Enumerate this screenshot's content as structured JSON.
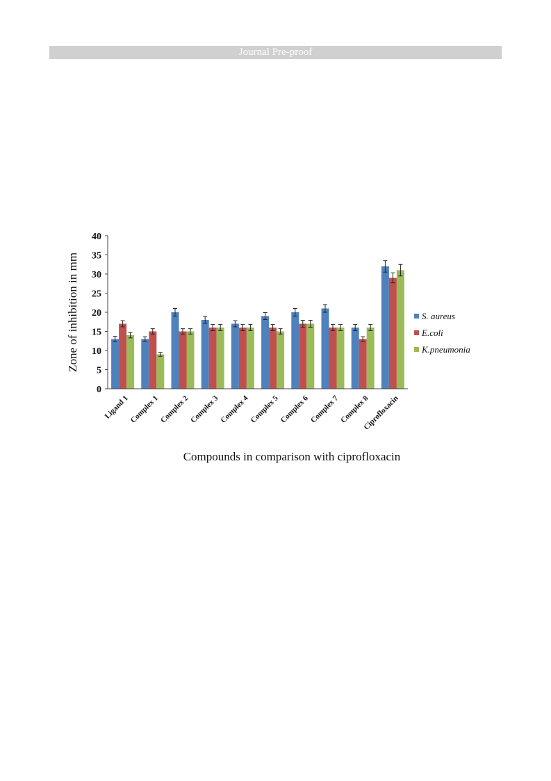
{
  "banner": {
    "text": "Journal Pre-proof"
  },
  "chart_data": {
    "type": "bar",
    "title": "",
    "xlabel": "Compounds  in comparison with ciprofloxacin",
    "ylabel": "Zone of inhibition in mm",
    "ylim": [
      0,
      40
    ],
    "yticks": [
      0,
      5,
      10,
      15,
      20,
      25,
      30,
      35,
      40
    ],
    "grid": false,
    "legend_position": "right",
    "error_bars": true,
    "categories": [
      "Ligand 1",
      "Complex 1",
      "Complex 2",
      "Complex 3",
      "Complex 4",
      "Complex 5",
      "Complex 6",
      "Complex 7",
      "Complex 8",
      "Ciprofloxacin"
    ],
    "series": [
      {
        "name": "S. aureus",
        "color": "#4f81bd",
        "values": [
          13,
          13,
          20,
          18,
          17,
          19,
          20,
          21,
          16,
          32
        ],
        "errors": [
          0.7,
          0.6,
          1.0,
          0.9,
          0.8,
          0.9,
          1.0,
          1.0,
          0.8,
          1.5
        ]
      },
      {
        "name": "E.coli",
        "color": "#c0504d",
        "values": [
          17,
          15,
          15,
          16,
          16,
          16,
          17,
          16,
          13,
          29
        ],
        "errors": [
          0.8,
          0.7,
          0.7,
          0.8,
          0.8,
          0.8,
          0.9,
          0.8,
          0.6,
          1.3
        ]
      },
      {
        "name": "K.pneumonia",
        "color": "#9bbb59",
        "values": [
          14,
          9,
          15,
          16,
          16,
          15,
          17,
          16,
          16,
          31
        ],
        "errors": [
          0.7,
          0.5,
          0.7,
          0.8,
          0.8,
          0.7,
          0.9,
          0.8,
          0.8,
          1.5
        ]
      }
    ]
  }
}
